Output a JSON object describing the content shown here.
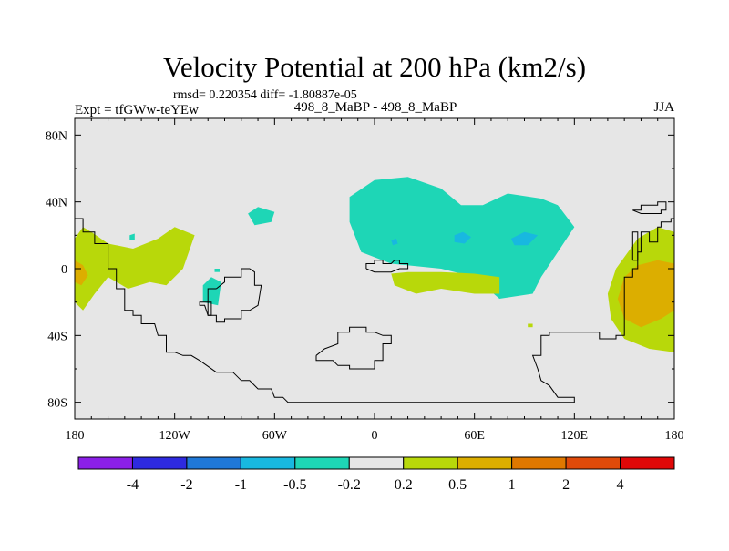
{
  "chart_data": {
    "type": "heatmap",
    "title": "Velocity Potential at 200 hPa (km2/s)",
    "stats_line": "rmsd= 0.220354 diff= -1.80887e-05",
    "left_label": "Expt = tfGWw-teYEw",
    "center_label": "498_8_MaBP - 498_8_MaBP",
    "right_label": "JJA",
    "x_range": [
      -180,
      180
    ],
    "y_range": [
      -90,
      90
    ],
    "x_ticks": [
      {
        "value": -180,
        "label": "180"
      },
      {
        "value": -120,
        "label": "120W"
      },
      {
        "value": -60,
        "label": "60W"
      },
      {
        "value": 0,
        "label": "0"
      },
      {
        "value": 60,
        "label": "60E"
      },
      {
        "value": 120,
        "label": "120E"
      },
      {
        "value": 180,
        "label": "180"
      }
    ],
    "y_ticks": [
      {
        "value": 80,
        "label": "80N"
      },
      {
        "value": 40,
        "label": "40N"
      },
      {
        "value": 0,
        "label": "0"
      },
      {
        "value": -40,
        "label": "40S"
      },
      {
        "value": -80,
        "label": "80S"
      }
    ],
    "background_color": "#e6e6e6",
    "colorbar": {
      "colors": [
        "#8b1fe8",
        "#2e2ae0",
        "#1f78d8",
        "#18b8e0",
        "#1ed6b6",
        "#e6e6e6",
        "#b8d80a",
        "#dcae00",
        "#e07800",
        "#e04a0a",
        "#e00808"
      ],
      "labels": [
        "-4",
        "-2",
        "-1",
        "-0.5",
        "-0.2",
        "0.2",
        "0.5",
        "1",
        "2",
        "4"
      ]
    },
    "regions": [
      {
        "name": "asia-pacific-negative",
        "color": "#1ed6b6",
        "points": [
          [
            -15,
            43
          ],
          [
            0,
            53
          ],
          [
            20,
            55
          ],
          [
            40,
            48
          ],
          [
            52,
            38
          ],
          [
            65,
            38
          ],
          [
            80,
            45
          ],
          [
            100,
            42
          ],
          [
            110,
            38
          ],
          [
            120,
            25
          ],
          [
            110,
            10
          ],
          [
            100,
            -5
          ],
          [
            95,
            -15
          ],
          [
            75,
            -18
          ],
          [
            60,
            -5
          ],
          [
            40,
            0
          ],
          [
            10,
            3
          ],
          [
            -8,
            10
          ],
          [
            -15,
            28
          ]
        ]
      },
      {
        "name": "asia-negative-core-west",
        "color": "#18b8e0",
        "points": [
          [
            48,
            20
          ],
          [
            53,
            22
          ],
          [
            58,
            19
          ],
          [
            54,
            15
          ],
          [
            48,
            16
          ]
        ]
      },
      {
        "name": "asia-negative-core-east",
        "color": "#18b8e0",
        "points": [
          [
            82,
            18
          ],
          [
            90,
            22
          ],
          [
            98,
            20
          ],
          [
            92,
            14
          ],
          [
            84,
            14
          ]
        ]
      },
      {
        "name": "asia-negative-core-small",
        "color": "#18b8e0",
        "points": [
          [
            10,
            17
          ],
          [
            13,
            18
          ],
          [
            14,
            15
          ],
          [
            11,
            14
          ]
        ]
      },
      {
        "name": "atlantic-negative-blob",
        "color": "#1ed6b6",
        "points": [
          [
            -76,
            33
          ],
          [
            -70,
            37
          ],
          [
            -60,
            34
          ],
          [
            -62,
            28
          ],
          [
            -72,
            26
          ]
        ]
      },
      {
        "name": "south-atlantic-negative-blob",
        "color": "#1ed6b6",
        "points": [
          [
            -103,
            -10
          ],
          [
            -98,
            -5
          ],
          [
            -92,
            -8
          ],
          [
            -94,
            -22
          ],
          [
            -103,
            -20
          ]
        ]
      },
      {
        "name": "small-negative-a",
        "color": "#1ed6b6",
        "points": [
          [
            -147,
            20
          ],
          [
            -144,
            21
          ],
          [
            -144,
            17
          ],
          [
            -147,
            17
          ]
        ]
      },
      {
        "name": "small-negative-b",
        "color": "#1ed6b6",
        "points": [
          [
            -96,
            0
          ],
          [
            -93,
            0
          ],
          [
            -93,
            -2
          ],
          [
            -96,
            -2
          ]
        ]
      },
      {
        "name": "indian-ocean-positive",
        "color": "#b8d80a",
        "points": [
          [
            10,
            -3
          ],
          [
            20,
            -2
          ],
          [
            40,
            -2
          ],
          [
            60,
            -3
          ],
          [
            75,
            -5
          ],
          [
            75,
            -15
          ],
          [
            60,
            -15
          ],
          [
            40,
            -12
          ],
          [
            25,
            -15
          ],
          [
            12,
            -10
          ]
        ]
      },
      {
        "name": "pacific-east-positive",
        "color": "#b8d80a",
        "points": [
          [
            -180,
            18
          ],
          [
            -175,
            25
          ],
          [
            -170,
            22
          ],
          [
            -160,
            15
          ],
          [
            -145,
            12
          ],
          [
            -130,
            18
          ],
          [
            -120,
            25
          ],
          [
            -108,
            20
          ],
          [
            -115,
            0
          ],
          [
            -125,
            -10
          ],
          [
            -135,
            -8
          ],
          [
            -148,
            -12
          ],
          [
            -160,
            -5
          ],
          [
            -168,
            -15
          ],
          [
            -175,
            -25
          ],
          [
            -180,
            -20
          ]
        ]
      },
      {
        "name": "pacific-east-positive-core",
        "color": "#dcae00",
        "points": [
          [
            -180,
            5
          ],
          [
            -175,
            2
          ],
          [
            -172,
            -4
          ],
          [
            -176,
            -10
          ],
          [
            -180,
            -8
          ]
        ]
      },
      {
        "name": "west-pacific-positive",
        "color": "#b8d80a",
        "points": [
          [
            180,
            22
          ],
          [
            170,
            25
          ],
          [
            158,
            18
          ],
          [
            145,
            0
          ],
          [
            140,
            -15
          ],
          [
            142,
            -30
          ],
          [
            150,
            -42
          ],
          [
            165,
            -48
          ],
          [
            180,
            -50
          ]
        ]
      },
      {
        "name": "west-pacific-positive-core",
        "color": "#dcae00",
        "points": [
          [
            180,
            3
          ],
          [
            170,
            5
          ],
          [
            158,
            2
          ],
          [
            150,
            -5
          ],
          [
            146,
            -18
          ],
          [
            150,
            -30
          ],
          [
            160,
            -35
          ],
          [
            172,
            -30
          ],
          [
            180,
            -25
          ]
        ]
      },
      {
        "name": "small-positive",
        "color": "#b8d80a",
        "points": [
          [
            92,
            -33
          ],
          [
            95,
            -33
          ],
          [
            95,
            -35
          ],
          [
            92,
            -35
          ]
        ]
      }
    ],
    "coastlines": [
      {
        "name": "americas-coastline",
        "points": [
          [
            -180,
            30
          ],
          [
            -175,
            30
          ],
          [
            -175,
            22
          ],
          [
            -168,
            22
          ],
          [
            -168,
            15
          ],
          [
            -160,
            15
          ],
          [
            -160,
            0
          ],
          [
            -155,
            0
          ],
          [
            -155,
            -12
          ],
          [
            -150,
            -12
          ],
          [
            -150,
            -25
          ],
          [
            -145,
            -25
          ],
          [
            -145,
            -28
          ],
          [
            -140,
            -28
          ],
          [
            -140,
            -33
          ],
          [
            -132,
            -33
          ],
          [
            -130,
            -40
          ],
          [
            -125,
            -40
          ],
          [
            -125,
            -50
          ],
          [
            -120,
            -50
          ],
          [
            -115,
            -52
          ],
          [
            -110,
            -52
          ],
          [
            -105,
            -55
          ],
          [
            -95,
            -62
          ],
          [
            -85,
            -62
          ],
          [
            -80,
            -67
          ],
          [
            -75,
            -67
          ],
          [
            -70,
            -72
          ],
          [
            -62,
            -72
          ],
          [
            -60,
            -77
          ],
          [
            -55,
            -77
          ],
          [
            -52,
            -80
          ],
          [
            120,
            -80
          ],
          [
            120,
            -77
          ],
          [
            110,
            -77
          ],
          [
            105,
            -70
          ],
          [
            100,
            -67
          ],
          [
            98,
            -60
          ],
          [
            95,
            -52
          ],
          [
            100,
            -52
          ],
          [
            100,
            -40
          ],
          [
            105,
            -40
          ],
          [
            105,
            -38
          ],
          [
            135,
            -38
          ],
          [
            135,
            -42
          ],
          [
            145,
            -42
          ],
          [
            145,
            -40
          ],
          [
            150,
            -40
          ],
          [
            150,
            -25
          ],
          [
            150,
            -5
          ],
          [
            155,
            -5
          ],
          [
            155,
            0
          ],
          [
            158,
            0
          ],
          [
            158,
            10
          ],
          [
            160,
            10
          ],
          [
            160,
            22
          ],
          [
            165,
            22
          ],
          [
            165,
            16
          ],
          [
            170,
            16
          ],
          [
            170,
            25
          ],
          [
            172,
            25
          ],
          [
            172,
            28
          ],
          [
            178,
            28
          ],
          [
            178,
            30
          ],
          [
            180,
            30
          ]
        ]
      },
      {
        "name": "central-america-outline",
        "points": [
          [
            -95,
            -12
          ],
          [
            -100,
            -12
          ],
          [
            -100,
            -20
          ],
          [
            -105,
            -20
          ],
          [
            -105,
            -22
          ],
          [
            -102,
            -22
          ],
          [
            -100,
            -28
          ],
          [
            -95,
            -28
          ],
          [
            -95,
            -32
          ],
          [
            -90,
            -32
          ],
          [
            -90,
            -30
          ],
          [
            -80,
            -30
          ],
          [
            -80,
            -25
          ],
          [
            -75,
            -25
          ],
          [
            -70,
            -22
          ],
          [
            -68,
            -10
          ],
          [
            -72,
            -10
          ],
          [
            -72,
            -2
          ],
          [
            -75,
            0
          ],
          [
            -80,
            0
          ],
          [
            -80,
            -5
          ],
          [
            -90,
            -5
          ],
          [
            -90,
            -8
          ],
          [
            -95,
            -12
          ]
        ]
      },
      {
        "name": "gulf-outline",
        "points": [
          [
            -100,
            -20
          ],
          [
            -98,
            -20
          ],
          [
            -98,
            -28
          ],
          [
            -100,
            -28
          ],
          [
            -100,
            -20
          ]
        ]
      },
      {
        "name": "africa-outline",
        "points": [
          [
            -35,
            -52
          ],
          [
            -35,
            -55
          ],
          [
            -25,
            -55
          ],
          [
            -22,
            -58
          ],
          [
            -15,
            -58
          ],
          [
            -15,
            -60
          ],
          [
            0,
            -60
          ],
          [
            0,
            -55
          ],
          [
            5,
            -55
          ],
          [
            5,
            -45
          ],
          [
            10,
            -45
          ],
          [
            10,
            -40
          ],
          [
            5,
            -40
          ],
          [
            0,
            -38
          ],
          [
            -5,
            -38
          ],
          [
            -5,
            -35
          ],
          [
            -15,
            -35
          ],
          [
            -15,
            -38
          ],
          [
            -22,
            -38
          ],
          [
            -22,
            -45
          ],
          [
            -30,
            -48
          ],
          [
            -35,
            -52
          ]
        ]
      },
      {
        "name": "arabia-outline",
        "points": [
          [
            -5,
            0
          ],
          [
            -5,
            3
          ],
          [
            0,
            3
          ],
          [
            0,
            5
          ],
          [
            5,
            5
          ],
          [
            5,
            3
          ],
          [
            10,
            3
          ],
          [
            12,
            5
          ],
          [
            15,
            5
          ],
          [
            15,
            3
          ],
          [
            20,
            3
          ],
          [
            20,
            0
          ],
          [
            15,
            0
          ],
          [
            10,
            -2
          ],
          [
            5,
            -2
          ],
          [
            0,
            -2
          ],
          [
            -5,
            0
          ]
        ]
      },
      {
        "name": "north-pacific-outline",
        "points": [
          [
            155,
            35
          ],
          [
            160,
            35
          ],
          [
            160,
            38
          ],
          [
            170,
            38
          ],
          [
            170,
            40
          ],
          [
            175,
            40
          ],
          [
            175,
            35
          ],
          [
            172,
            35
          ],
          [
            172,
            33
          ],
          [
            165,
            33
          ],
          [
            160,
            33
          ],
          [
            155,
            35
          ]
        ]
      },
      {
        "name": "australia-outline",
        "points": [
          [
            155,
            5
          ],
          [
            158,
            5
          ],
          [
            158,
            22
          ],
          [
            155,
            22
          ],
          [
            155,
            5
          ]
        ]
      }
    ]
  }
}
